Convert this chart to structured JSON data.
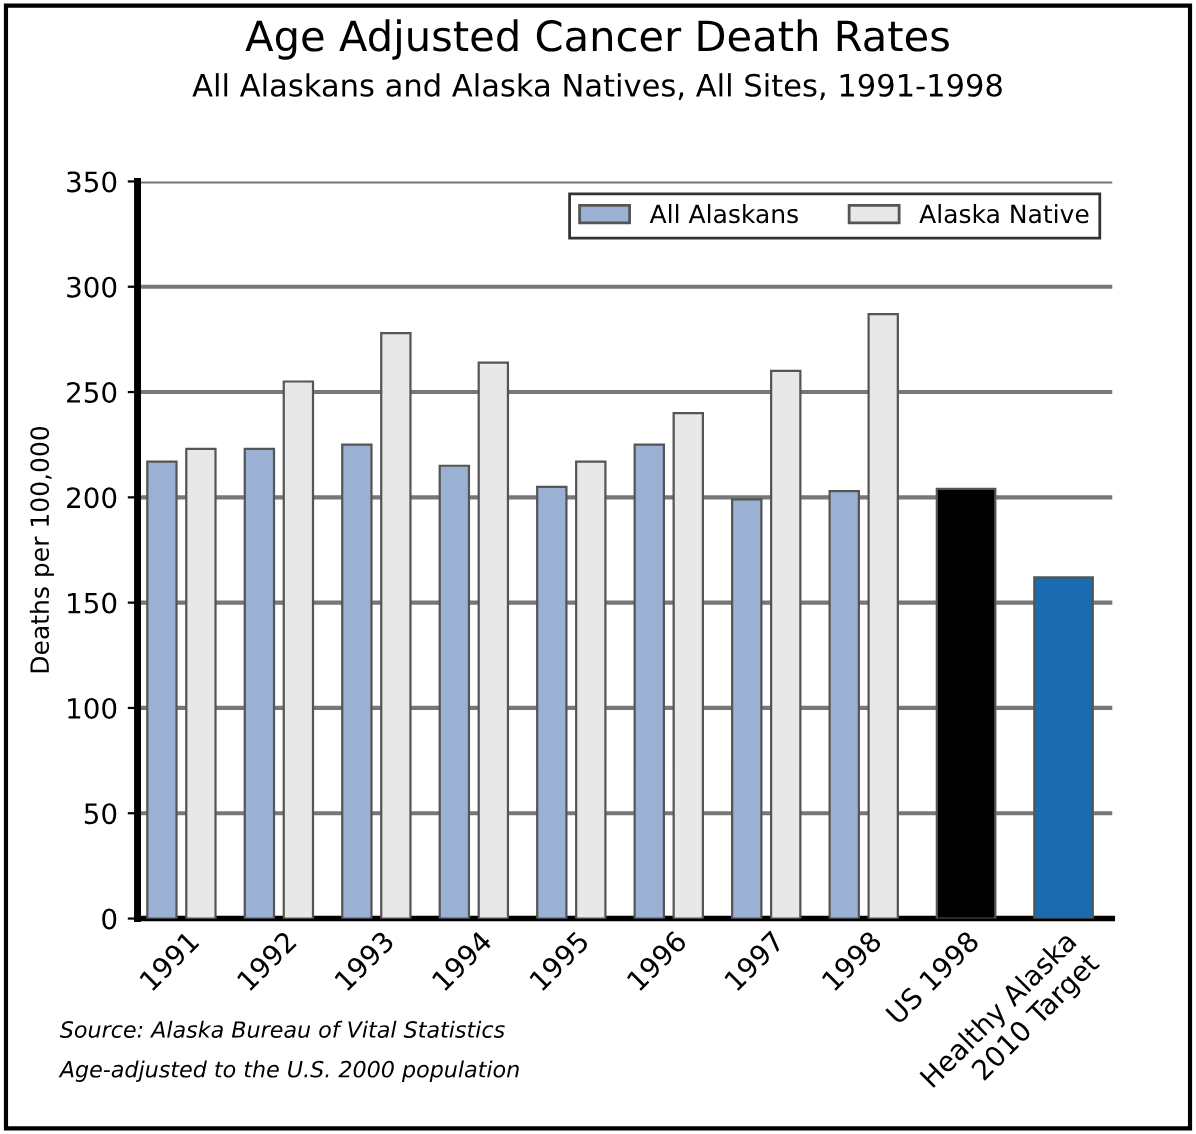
{
  "chart_data": {
    "type": "bar",
    "title": "Age Adjusted Cancer Death Rates",
    "subtitle": "All Alaskans and Alaska Natives, All Sites, 1991-1998",
    "ylabel": "Deaths per 100,000",
    "categories": [
      "1991",
      "1992",
      "1993",
      "1994",
      "1995",
      "1996",
      "1997",
      "1998",
      "US 1998",
      "Healthy Alaska\n2010 Target"
    ],
    "series": [
      {
        "name": "All Alaskans",
        "color": "#9bb1d4",
        "values": [
          217,
          223,
          225,
          215,
          205,
          225,
          199,
          203,
          null,
          null
        ]
      },
      {
        "name": "Alaska Native",
        "color": "#e8e8e8",
        "values": [
          223,
          255,
          278,
          264,
          217,
          240,
          260,
          287,
          null,
          null
        ]
      },
      {
        "colors": [
          "#000000",
          "#000000",
          "#000000",
          "#000000",
          "#000000",
          "#000000",
          "#000000",
          "#000000",
          "#000000",
          "#1a6bb0"
        ],
        "values": [
          null,
          null,
          null,
          null,
          null,
          null,
          null,
          null,
          204,
          162
        ]
      }
    ],
    "ylim": [
      0,
      350
    ],
    "yticks": [
      0,
      50,
      100,
      150,
      200,
      250,
      300,
      350
    ],
    "grid": "y",
    "legend": "top right",
    "annotations": [
      "Source: Alaska Bureau of Vital Statistics",
      "Age-adjusted to the U.S. 2000 population"
    ]
  }
}
